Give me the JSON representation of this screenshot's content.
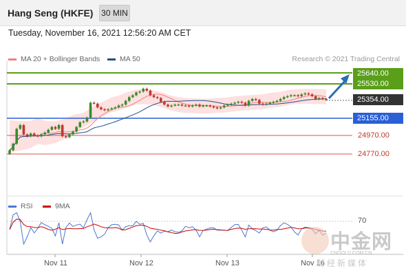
{
  "header": {
    "instrument": "Hang Seng (HKFE)",
    "timeframe": "30 MIN"
  },
  "datetime": "Tuesday, November 16, 2021 12:56:20 AM CET",
  "legend": {
    "items": [
      {
        "label": "MA 20 + Bollinger Bands",
        "color": "#f08080"
      },
      {
        "label": "MA 50",
        "color": "#1f4e8c"
      }
    ],
    "credit": "Research © 2021 Trading Central"
  },
  "levels": [
    {
      "value": "25640.00",
      "kind": "resistance"
    },
    {
      "value": "25530.00",
      "kind": "resistance"
    },
    {
      "value": "25354.00",
      "kind": "last"
    },
    {
      "value": "25155.00",
      "kind": "pivot"
    },
    {
      "value": "24970.00",
      "kind": "support"
    },
    {
      "value": "24770.00",
      "kind": "support"
    }
  ],
  "colors": {
    "resistance": "#5a9e1a",
    "last": "#333333",
    "pivot": "#2a5fd6",
    "support": "#d9534f",
    "candle_up": "#3b8b2a",
    "candle_down": "#c0392b",
    "bollinger_fill": "#fde0e0",
    "arrow": "#2a6cb8"
  },
  "rsi": {
    "legend": [
      {
        "label": "RSI",
        "color": "#4a76d0"
      },
      {
        "label": "9MA",
        "color": "#cc0000"
      }
    ],
    "level_label": "70"
  },
  "x_axis": [
    "Nov 11",
    "Nov 12",
    "Nov 13",
    "Nov 16"
  ],
  "watermark": {
    "cn": "中金网",
    "sub": "CNGOLD.COM.CN",
    "cn2": "财经新媒体",
    "icon": "cngold-logo-icon"
  },
  "chart_data": {
    "type": "candlestick",
    "title": "Hang Seng (HKFE)",
    "xlabel": "",
    "ylabel": "",
    "categories": [
      "Nov 11",
      "Nov 12",
      "Nov 13",
      "Nov 16"
    ],
    "ylim": [
      24700,
      25700
    ],
    "last_price": 25354,
    "resistance": [
      25640,
      25530
    ],
    "pivot": 25155,
    "support": [
      24970,
      24770
    ],
    "close": [
      24810,
      24880,
      25040,
      25080,
      24980,
      24960,
      24990,
      24970,
      24960,
      24980,
      25000,
      25030,
      25060,
      25040,
      25080,
      24960,
      24950,
      24980,
      25010,
      25060,
      25110,
      25120,
      25160,
      25320,
      25310,
      25270,
      25250,
      25240,
      25250,
      25260,
      25270,
      25290,
      25300,
      25340,
      25380,
      25400,
      25430,
      25440,
      25470,
      25450,
      25400,
      25380,
      25370,
      25330,
      25300,
      25280,
      25290,
      25300,
      25300,
      25290,
      25290,
      25280,
      25290,
      25300,
      25280,
      25290,
      25290,
      25280,
      25270,
      25260,
      25270,
      25290,
      25300,
      25310,
      25320,
      25330,
      25320,
      25290,
      25340,
      25360,
      25350,
      25310,
      25300,
      25310,
      25320,
      25330,
      25340,
      25360,
      25380,
      25390,
      25400,
      25400,
      25390,
      25410,
      25420,
      25410,
      25390,
      25360,
      25370,
      25360,
      25354
    ]
  }
}
